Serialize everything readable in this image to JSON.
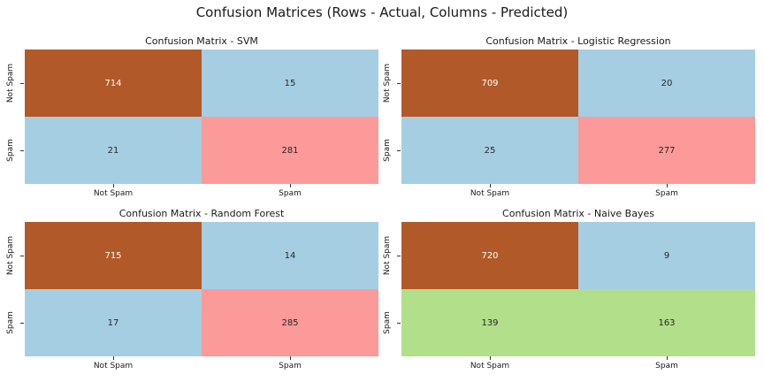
{
  "suptitle": "Confusion Matrices (Rows - Actual, Columns - Predicted)",
  "chart_data": [
    {
      "type": "heatmap",
      "title": "Confusion Matrix - SVM",
      "row_labels": [
        "Not Spam",
        "Spam"
      ],
      "col_labels": [
        "Not Spam",
        "Spam"
      ],
      "values": [
        [
          714,
          15
        ],
        [
          21,
          281
        ]
      ],
      "cell_colors": [
        [
          "#b15928",
          "#a6cee3"
        ],
        [
          "#a6cee3",
          "#fb9a99"
        ]
      ],
      "text_colors": [
        [
          "#ffffff",
          "#262626"
        ],
        [
          "#262626",
          "#262626"
        ]
      ]
    },
    {
      "type": "heatmap",
      "title": "Confusion Matrix - Logistic Regression",
      "row_labels": [
        "Not Spam",
        "Spam"
      ],
      "col_labels": [
        "Not Spam",
        "Spam"
      ],
      "values": [
        [
          709,
          20
        ],
        [
          25,
          277
        ]
      ],
      "cell_colors": [
        [
          "#b15928",
          "#a6cee3"
        ],
        [
          "#a6cee3",
          "#fb9a99"
        ]
      ],
      "text_colors": [
        [
          "#ffffff",
          "#262626"
        ],
        [
          "#262626",
          "#262626"
        ]
      ]
    },
    {
      "type": "heatmap",
      "title": "Confusion Matrix - Random Forest",
      "row_labels": [
        "Not Spam",
        "Spam"
      ],
      "col_labels": [
        "Not Spam",
        "Spam"
      ],
      "values": [
        [
          715,
          14
        ],
        [
          17,
          285
        ]
      ],
      "cell_colors": [
        [
          "#b15928",
          "#a6cee3"
        ],
        [
          "#a6cee3",
          "#fb9a99"
        ]
      ],
      "text_colors": [
        [
          "#ffffff",
          "#262626"
        ],
        [
          "#262626",
          "#262626"
        ]
      ]
    },
    {
      "type": "heatmap",
      "title": "Confusion Matrix - Naive Bayes",
      "row_labels": [
        "Not Spam",
        "Spam"
      ],
      "col_labels": [
        "Not Spam",
        "Spam"
      ],
      "values": [
        [
          720,
          9
        ],
        [
          139,
          163
        ]
      ],
      "cell_colors": [
        [
          "#b15928",
          "#a6cee3"
        ],
        [
          "#b2df8a",
          "#b2df8a"
        ]
      ],
      "text_colors": [
        [
          "#ffffff",
          "#262626"
        ],
        [
          "#262626",
          "#262626"
        ]
      ]
    }
  ]
}
